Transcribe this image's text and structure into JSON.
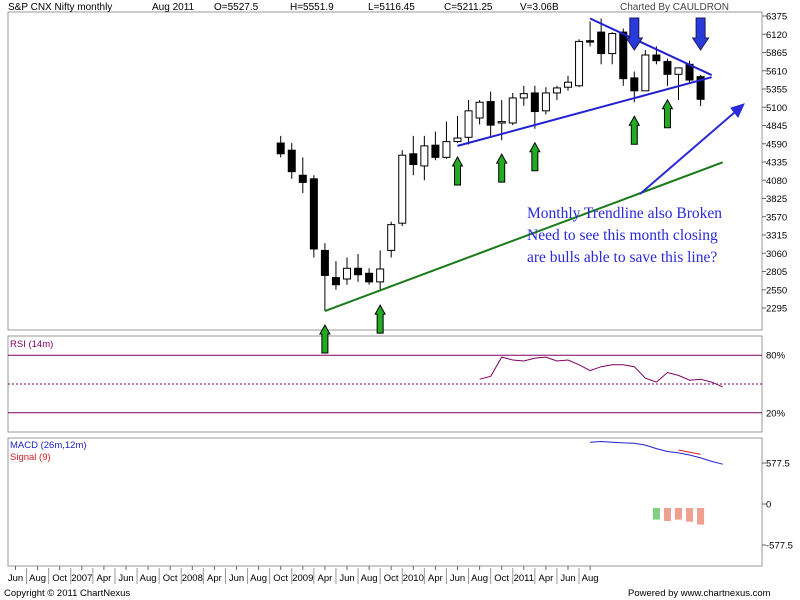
{
  "header": {
    "title": "S&P CNX Nifty monthly",
    "period": "Aug 2011",
    "open": "O=5527.5",
    "high": "H=5551.9",
    "low": "L=5116.45",
    "close": "C=5211.25",
    "volume": "V=3.06B",
    "charted_by": "Charted By CAULDRON"
  },
  "footer": {
    "copyright": "Copyright © 2011 ChartNexus",
    "powered": "Powered by www.chartnexus.com"
  },
  "chart_data": {
    "type": "candlestick",
    "price_ticks": [
      "6375",
      "6120",
      "5865",
      "5610",
      "5355",
      "5100",
      "4845",
      "4590",
      "4335",
      "4080",
      "3825",
      "3570",
      "3315",
      "3060",
      "2805",
      "2550",
      "2295"
    ],
    "x_ticks": [
      "Jun",
      "Aug",
      "Oct",
      "2007",
      "Apr",
      "Jun",
      "Aug",
      "Oct",
      "2008",
      "Apr",
      "Jun",
      "Aug",
      "Oct",
      "2009",
      "Apr",
      "Jun",
      "Aug",
      "Oct",
      "2010",
      "Apr",
      "Jun",
      "Aug",
      "Oct",
      "2011",
      "Apr",
      "Jun",
      "Aug"
    ],
    "month_start": "2006-06",
    "candles": [
      {
        "m": "2008-06",
        "o": 4600,
        "h": 4700,
        "l": 4400,
        "c": 4450
      },
      {
        "m": "2008-07",
        "o": 4500,
        "h": 4600,
        "l": 4100,
        "c": 4200
      },
      {
        "m": "2008-08",
        "o": 4150,
        "h": 4400,
        "l": 3900,
        "c": 4050
      },
      {
        "m": "2008-09",
        "o": 4100,
        "h": 4150,
        "l": 3000,
        "c": 3120
      },
      {
        "m": "2008-10",
        "o": 3100,
        "h": 3200,
        "l": 2253,
        "c": 2750
      },
      {
        "m": "2008-11",
        "o": 2720,
        "h": 2950,
        "l": 2550,
        "c": 2620
      },
      {
        "m": "2008-12",
        "o": 2700,
        "h": 3000,
        "l": 2620,
        "c": 2850
      },
      {
        "m": "2009-01",
        "o": 2850,
        "h": 3050,
        "l": 2660,
        "c": 2760
      },
      {
        "m": "2009-02",
        "o": 2780,
        "h": 2850,
        "l": 2620,
        "c": 2660
      },
      {
        "m": "2009-03",
        "o": 2660,
        "h": 3100,
        "l": 2530,
        "c": 2840
      },
      {
        "m": "2009-04",
        "o": 3100,
        "h": 3500,
        "l": 3000,
        "c": 3460
      },
      {
        "m": "2009-05",
        "o": 3480,
        "h": 4500,
        "l": 3440,
        "c": 4430
      },
      {
        "m": "2009-06",
        "o": 4450,
        "h": 4700,
        "l": 4150,
        "c": 4300
      },
      {
        "m": "2009-07",
        "o": 4280,
        "h": 4700,
        "l": 4080,
        "c": 4560
      },
      {
        "m": "2009-08",
        "o": 4570,
        "h": 4760,
        "l": 4360,
        "c": 4400
      },
      {
        "m": "2009-09",
        "o": 4400,
        "h": 4900,
        "l": 4380,
        "c": 4620
      },
      {
        "m": "2009-10",
        "o": 4620,
        "h": 4980,
        "l": 4600,
        "c": 4670
      },
      {
        "m": "2009-11",
        "o": 4680,
        "h": 5200,
        "l": 4580,
        "c": 5050
      },
      {
        "m": "2009-12",
        "o": 4950,
        "h": 5200,
        "l": 4860,
        "c": 5170
      },
      {
        "m": "2010-01",
        "o": 5180,
        "h": 5320,
        "l": 4700,
        "c": 4850
      },
      {
        "m": "2010-02",
        "o": 4880,
        "h": 5200,
        "l": 4640,
        "c": 4900
      },
      {
        "m": "2010-03",
        "o": 4880,
        "h": 5300,
        "l": 4850,
        "c": 5230
      },
      {
        "m": "2010-04",
        "o": 5230,
        "h": 5400,
        "l": 5120,
        "c": 5290
      },
      {
        "m": "2010-05",
        "o": 5300,
        "h": 5400,
        "l": 4800,
        "c": 5040
      },
      {
        "m": "2010-06",
        "o": 5050,
        "h": 5380,
        "l": 5000,
        "c": 5300
      },
      {
        "m": "2010-07",
        "o": 5300,
        "h": 5400,
        "l": 5200,
        "c": 5370
      },
      {
        "m": "2010-08",
        "o": 5380,
        "h": 5540,
        "l": 5330,
        "c": 5450
      },
      {
        "m": "2010-09",
        "o": 5400,
        "h": 6050,
        "l": 5380,
        "c": 6020
      },
      {
        "m": "2010-10",
        "o": 6030,
        "h": 6300,
        "l": 5950,
        "c": 6010
      },
      {
        "m": "2010-11",
        "o": 6150,
        "h": 6340,
        "l": 5700,
        "c": 5850
      },
      {
        "m": "2010-12",
        "o": 5850,
        "h": 6150,
        "l": 5700,
        "c": 6130
      },
      {
        "m": "2011-01",
        "o": 6150,
        "h": 6200,
        "l": 5400,
        "c": 5500
      },
      {
        "m": "2011-02",
        "o": 5510,
        "h": 5600,
        "l": 5170,
        "c": 5330
      },
      {
        "m": "2011-03",
        "o": 5330,
        "h": 5900,
        "l": 5350,
        "c": 5830
      },
      {
        "m": "2011-04",
        "o": 5830,
        "h": 5950,
        "l": 5700,
        "c": 5750
      },
      {
        "m": "2011-05",
        "o": 5740,
        "h": 5780,
        "l": 5400,
        "c": 5560
      },
      {
        "m": "2011-06",
        "o": 5560,
        "h": 5650,
        "l": 5200,
        "c": 5650
      },
      {
        "m": "2011-07",
        "o": 5700,
        "h": 5750,
        "l": 5450,
        "c": 5480
      },
      {
        "m": "2011-08",
        "o": 5527.5,
        "h": 5551.9,
        "l": 5116.45,
        "c": 5211.25
      }
    ],
    "trendlines": [
      {
        "color": "#2020d0",
        "from": {
          "m": "2009-10",
          "p": 4560
        },
        "to": {
          "m": "2011-09",
          "p": 5520
        }
      },
      {
        "color": "#2020d0",
        "from": {
          "m": "2010-10",
          "p": 6340
        },
        "to": {
          "m": "2011-09",
          "p": 5550
        }
      },
      {
        "color": "#1a7a1a",
        "from": {
          "m": "2008-10",
          "p": 2253
        },
        "to": {
          "m": "2011-10",
          "p": 4330
        }
      }
    ],
    "up_arrows": [
      {
        "m": "2008-10",
        "color": "#22aa22"
      },
      {
        "m": "2009-03",
        "color": "#22aa22"
      },
      {
        "m": "2009-10",
        "color": "#22aa22"
      },
      {
        "m": "2010-02",
        "color": "#22aa22"
      },
      {
        "m": "2010-05",
        "color": "#22aa22"
      },
      {
        "m": "2011-02",
        "color": "#22aa22"
      },
      {
        "m": "2011-05",
        "color": "#22aa22"
      }
    ],
    "down_arrows": [
      {
        "m": "2011-02",
        "color": "#2a3ad8"
      },
      {
        "m": "2011-08",
        "color": "#2a3ad8"
      }
    ],
    "annotation": {
      "lines": [
        "Monthly Trendline also Broken",
        "Need to see this month closing",
        "are bulls able to save this line?"
      ],
      "color": "#2a2ad8"
    },
    "rsi": {
      "label": "RSI (14m)",
      "levels": [
        "80%",
        "20%"
      ],
      "start": "2009-12",
      "values": [
        55,
        58,
        78,
        75,
        74,
        77,
        78,
        74,
        75,
        70,
        64,
        68,
        70,
        70,
        68,
        56,
        52,
        62,
        59,
        54,
        55,
        52,
        47
      ]
    },
    "macd": {
      "label": "MACD (26m,12m)",
      "signal_label": "Signal (9)",
      "ticks": [
        "577.5",
        "0",
        "-577.5"
      ],
      "macd_start": "2010-10",
      "macd_values": [
        870,
        880,
        870,
        860,
        855,
        830,
        780,
        740,
        720,
        690,
        650,
        600,
        560
      ],
      "signal_start": "2011-06",
      "signal_values": [
        760,
        730,
        700
      ],
      "hist_start": "2011-04",
      "hist_values": [
        -220,
        -240,
        -220,
        -250,
        -290
      ]
    }
  }
}
